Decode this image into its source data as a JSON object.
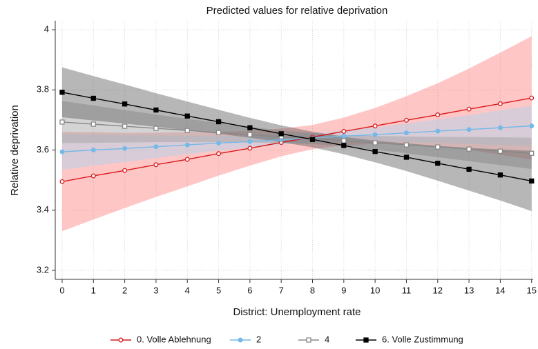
{
  "chart_data": {
    "type": "line",
    "title": "Predicted values for relative deprivation",
    "x_label": "District: Unemployment rate",
    "y_label": "Relative deprivation",
    "x": [
      0,
      1,
      2,
      3,
      4,
      5,
      6,
      7,
      8,
      9,
      10,
      11,
      12,
      13,
      14,
      15
    ],
    "xlim": [
      -0.22,
      15.05
    ],
    "xticks": [
      0,
      1,
      2,
      3,
      4,
      5,
      6,
      7,
      8,
      9,
      10,
      11,
      12,
      13,
      14,
      15
    ],
    "ylim": [
      3.17,
      4.03
    ],
    "yticks": [
      {
        "value": 3.2,
        "label": "3.2"
      },
      {
        "value": 3.4,
        "label": "3.4"
      },
      {
        "value": 3.6,
        "label": "3.6"
      },
      {
        "value": 3.8,
        "label": "3.8"
      },
      4
    ],
    "grid": true,
    "legend": "bottom",
    "series": [
      {
        "name": "0. Volle Ablehnung",
        "color": "#d7191c",
        "band_color": "#ff8080",
        "marker": "circle",
        "filled": false,
        "values": [
          3.495,
          3.514,
          3.532,
          3.551,
          3.569,
          3.588,
          3.606,
          3.625,
          3.643,
          3.662,
          3.68,
          3.699,
          3.717,
          3.736,
          3.754,
          3.773
        ],
        "ci_low": [
          3.33,
          3.369,
          3.407,
          3.444,
          3.479,
          3.515,
          3.548,
          3.579,
          3.603,
          3.616,
          3.62,
          3.619,
          3.612,
          3.601,
          3.584,
          3.568
        ],
        "ci_high": [
          3.66,
          3.659,
          3.657,
          3.658,
          3.659,
          3.661,
          3.664,
          3.671,
          3.683,
          3.708,
          3.74,
          3.779,
          3.822,
          3.871,
          3.924,
          3.978
        ]
      },
      {
        "name": "2",
        "color": "#74b9e7",
        "band_color": "#a9d3ee",
        "marker": "circle",
        "filled": true,
        "values": [
          3.594,
          3.6,
          3.605,
          3.611,
          3.617,
          3.623,
          3.628,
          3.634,
          3.64,
          3.646,
          3.651,
          3.657,
          3.663,
          3.668,
          3.674,
          3.68
        ],
        "ci_low": [
          3.534,
          3.548,
          3.56,
          3.573,
          3.586,
          3.598,
          3.608,
          3.618,
          3.625,
          3.628,
          3.627,
          3.626,
          3.624,
          3.62,
          3.616,
          3.612
        ],
        "ci_high": [
          3.654,
          3.652,
          3.65,
          3.649,
          3.648,
          3.648,
          3.648,
          3.65,
          3.655,
          3.664,
          3.675,
          3.688,
          3.702,
          3.716,
          3.732,
          3.748
        ]
      },
      {
        "name": "4",
        "color": "#888888",
        "band_color": "#a0a0a0",
        "marker": "square",
        "filled": false,
        "values": [
          3.693,
          3.686,
          3.679,
          3.672,
          3.665,
          3.658,
          3.651,
          3.644,
          3.638,
          3.631,
          3.624,
          3.617,
          3.61,
          3.603,
          3.596,
          3.589
        ],
        "ci_low": [
          3.623,
          3.624,
          3.625,
          3.626,
          3.626,
          3.626,
          3.625,
          3.623,
          3.62,
          3.612,
          3.601,
          3.589,
          3.576,
          3.563,
          3.55,
          3.537
        ],
        "ci_high": [
          3.763,
          3.748,
          3.733,
          3.718,
          3.704,
          3.69,
          3.677,
          3.665,
          3.656,
          3.65,
          3.647,
          3.645,
          3.644,
          3.643,
          3.642,
          3.641
        ]
      },
      {
        "name": "6. Volle Zustimmung",
        "color": "#000000",
        "band_color": "#606060",
        "marker": "square",
        "filled": true,
        "values": [
          3.792,
          3.772,
          3.753,
          3.733,
          3.713,
          3.694,
          3.674,
          3.654,
          3.635,
          3.615,
          3.595,
          3.576,
          3.556,
          3.536,
          3.517,
          3.497
        ],
        "ci_low": [
          3.709,
          3.698,
          3.688,
          3.677,
          3.665,
          3.654,
          3.641,
          3.626,
          3.609,
          3.586,
          3.559,
          3.53,
          3.498,
          3.465,
          3.432,
          3.397
        ],
        "ci_high": [
          3.875,
          3.846,
          3.818,
          3.789,
          3.761,
          3.734,
          3.707,
          3.682,
          3.661,
          3.644,
          3.631,
          3.622,
          3.614,
          3.607,
          3.602,
          3.597
        ]
      }
    ]
  }
}
